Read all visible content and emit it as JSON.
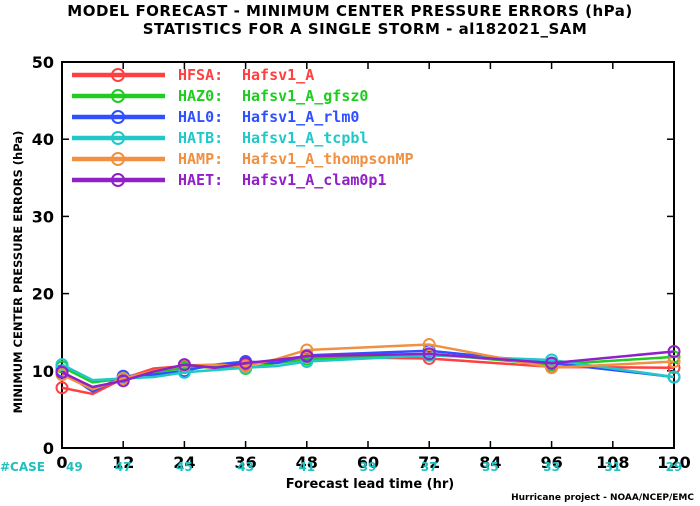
{
  "chart_data": {
    "type": "line",
    "title": "MODEL FORECAST - MINIMUM CENTER PRESSURE ERRORS (hPa)",
    "subtitle": "STATISTICS FOR A SINGLE STORM - al182021_SAM",
    "xlabel": "Forecast lead time (hr)",
    "ylabel": "MINIMUM CENTER PRESSURE ERRORS (hPa)",
    "xlim": [
      0,
      120
    ],
    "ylim": [
      0,
      50
    ],
    "x_ticks": [
      "0",
      "12",
      "24",
      "36",
      "48",
      "60",
      "72",
      "84",
      "96",
      "108",
      "120"
    ],
    "y_ticks": [
      "0",
      "10",
      "20",
      "30",
      "40",
      "50"
    ],
    "case_label": "#CASE",
    "cases": [
      {
        "x": 0,
        "n": "49"
      },
      {
        "x": 12,
        "n": "47"
      },
      {
        "x": 24,
        "n": "45"
      },
      {
        "x": 36,
        "n": "43"
      },
      {
        "x": 48,
        "n": "41"
      },
      {
        "x": 60,
        "n": "39"
      },
      {
        "x": 72,
        "n": "37"
      },
      {
        "x": 84,
        "n": "35"
      },
      {
        "x": 96,
        "n": "33"
      },
      {
        "x": 108,
        "n": "31"
      },
      {
        "x": 120,
        "n": "29"
      }
    ],
    "legend_position": "top-left",
    "credit": "Hurricane project - NOAA/NCEP/EMC",
    "series": [
      {
        "name": "HFSA:",
        "desc": "Hafsv1_A",
        "color": "#ff4040",
        "x": [
          0,
          6,
          12,
          18,
          24,
          30,
          36,
          42,
          48,
          72,
          96,
          120
        ],
        "y": [
          7.8,
          7.0,
          9.0,
          10.3,
          10.6,
          10.4,
          10.8,
          11.2,
          11.8,
          11.6,
          10.5,
          10.4
        ]
      },
      {
        "name": "HAZ0:",
        "desc": "Hafsv1_A_gfsz0",
        "color": "#20cc20",
        "x": [
          0,
          6,
          12,
          18,
          24,
          30,
          36,
          42,
          48,
          72,
          96,
          120
        ],
        "y": [
          10.5,
          8.5,
          9.0,
          9.8,
          10.4,
          10.5,
          10.3,
          11.0,
          11.5,
          12.2,
          10.8,
          11.8
        ]
      },
      {
        "name": "HAL0:",
        "desc": "Hafsv1_A_rlm0",
        "color": "#3050ff",
        "x": [
          0,
          6,
          12,
          18,
          24,
          30,
          36,
          42,
          48,
          72,
          96,
          120
        ],
        "y": [
          10.0,
          7.3,
          9.3,
          9.5,
          10.0,
          10.8,
          11.2,
          11.0,
          12.0,
          12.6,
          11.0,
          9.2
        ]
      },
      {
        "name": "HATB:",
        "desc": "Hafsv1_A_tcpbl",
        "color": "#20c8c8",
        "x": [
          0,
          6,
          12,
          18,
          24,
          30,
          36,
          42,
          48,
          72,
          96,
          120
        ],
        "y": [
          10.8,
          8.8,
          9.0,
          9.2,
          9.8,
          10.1,
          10.4,
          10.6,
          11.2,
          12.0,
          11.4,
          9.2
        ]
      },
      {
        "name": "HAMP:",
        "desc": "Hafsv1_A_thompsonMP",
        "color": "#f09040",
        "x": [
          0,
          6,
          12,
          18,
          24,
          30,
          36,
          42,
          48,
          72,
          96,
          120
        ],
        "y": [
          9.5,
          7.6,
          9.0,
          10.0,
          10.7,
          10.8,
          10.6,
          11.5,
          12.7,
          13.4,
          10.4,
          11.2
        ]
      },
      {
        "name": "HAET:",
        "desc": "Hafsv1_A_clam0p1",
        "color": "#9020c8",
        "x": [
          0,
          6,
          12,
          18,
          24,
          30,
          36,
          42,
          48,
          72,
          96,
          120
        ],
        "y": [
          9.8,
          7.9,
          8.7,
          9.9,
          10.8,
          10.4,
          11.0,
          11.4,
          11.9,
          12.2,
          11.0,
          12.5
        ]
      }
    ]
  }
}
